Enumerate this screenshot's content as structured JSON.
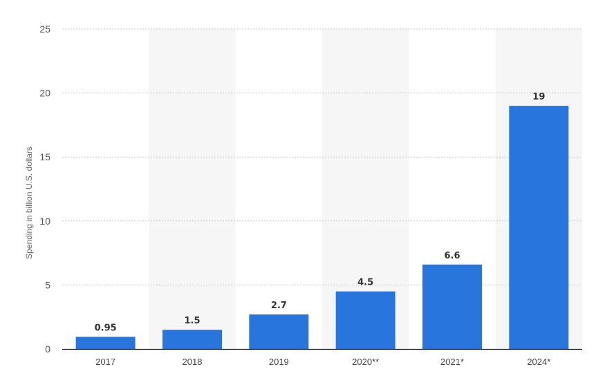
{
  "chart_data": {
    "type": "bar",
    "categories": [
      "2017",
      "2018",
      "2019",
      "2020**",
      "2021*",
      "2024*"
    ],
    "values": [
      0.95,
      1.5,
      2.7,
      4.5,
      6.6,
      19
    ],
    "value_labels": [
      "0.95",
      "1.5",
      "2.7",
      "4.5",
      "6.6",
      "19"
    ],
    "ylabel": "Spending in billion U.S. dollars",
    "ylim": [
      0,
      25
    ],
    "yticks": [
      0,
      5,
      10,
      15,
      20,
      25
    ],
    "grid": true,
    "alternating_bands": true,
    "bar_color": "#2875de"
  }
}
